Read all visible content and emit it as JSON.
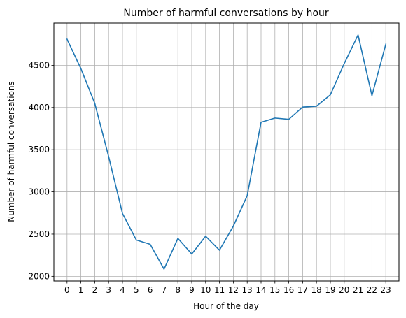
{
  "chart_data": {
    "type": "line",
    "title": "Number of harmful conversations by hour",
    "xlabel": "Hour of the day",
    "ylabel": "Number of harmful conversations",
    "x": [
      "0",
      "1",
      "2",
      "3",
      "4",
      "5",
      "6",
      "7",
      "8",
      "9",
      "10",
      "11",
      "12",
      "13",
      "14",
      "15",
      "16",
      "17",
      "18",
      "19",
      "20",
      "21",
      "22",
      "23"
    ],
    "series": [
      {
        "values": [
          4810,
          4460,
          4050,
          3420,
          2745,
          2430,
          2380,
          2085,
          2450,
          2265,
          2475,
          2310,
          2595,
          2955,
          3825,
          3875,
          3860,
          4005,
          4015,
          4150,
          4520,
          4860,
          4140,
          4750
        ],
        "color": "#1f77b4"
      }
    ],
    "xlim": [
      -0.95,
      23.95
    ],
    "ylim": [
      1945,
      5000
    ],
    "yticks": [
      "2000",
      "2500",
      "3000",
      "3500",
      "4000",
      "4500"
    ],
    "grid": true
  }
}
